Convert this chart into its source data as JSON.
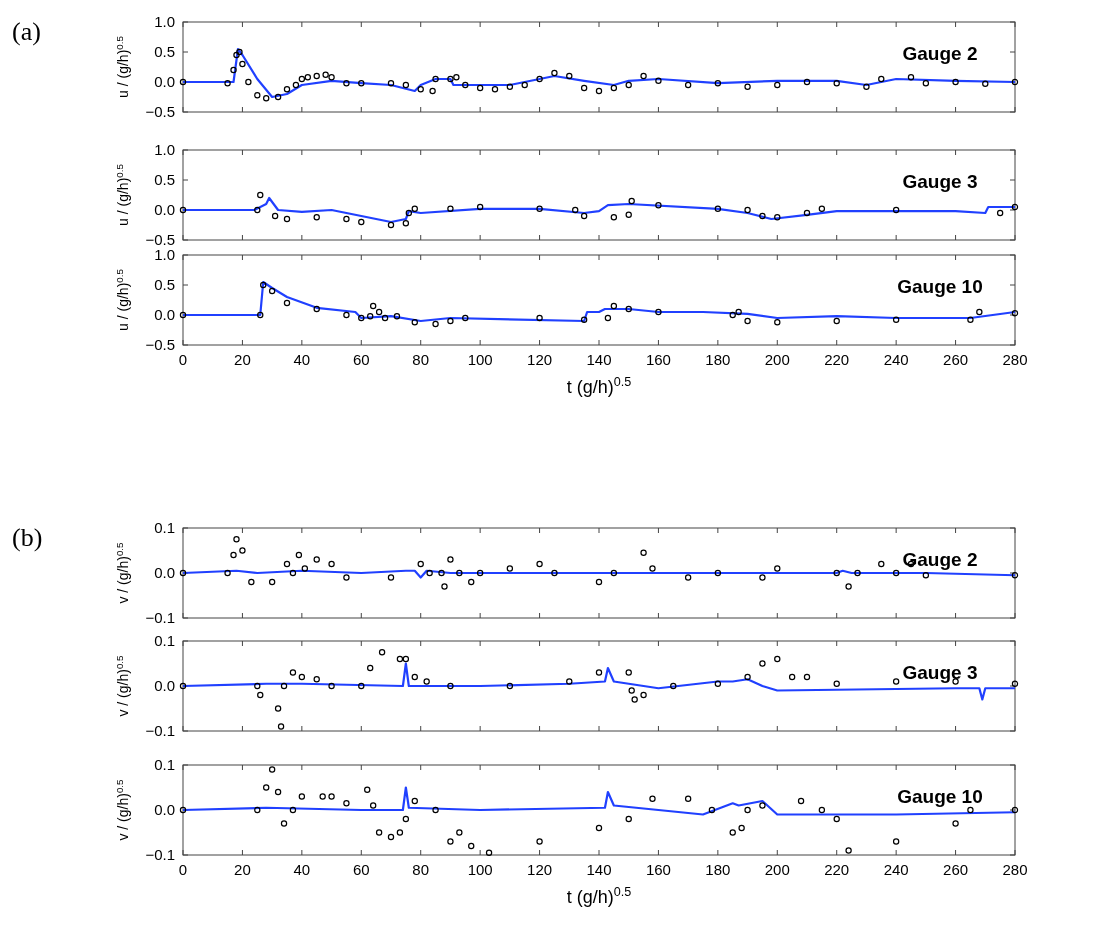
{
  "chart_data": [
    {
      "type": "line",
      "title": "Gauge 2",
      "ylabel": "u / (g/h)$^{0.5}$",
      "annotations": [
        "(a)"
      ],
      "tick_labels": "y",
      "xlim": [
        0,
        280
      ],
      "xticks": [
        0,
        20,
        40,
        60,
        80,
        100,
        120,
        140,
        160,
        180,
        200,
        220,
        240,
        260,
        280
      ],
      "ylim": [
        -0.5,
        1
      ],
      "yticks": [
        {
          "value": -0.5,
          "label": "−0.5"
        },
        {
          "value": 0,
          "label": "0.0"
        },
        {
          "value": 0.5,
          "label": "0.5"
        },
        {
          "value": 1,
          "label": "1.0"
        }
      ],
      "series": [
        {
          "type": "scatter",
          "marker": "circle",
          "color": "#000000",
          "x": [
            0,
            15,
            17,
            18,
            19,
            20,
            22,
            25,
            28,
            32,
            35,
            38,
            40,
            42,
            45,
            48,
            50,
            55,
            60,
            70,
            75,
            80,
            84,
            85,
            90,
            92,
            95,
            100,
            105,
            110,
            115,
            120,
            125,
            130,
            135,
            140,
            145,
            150,
            155,
            160,
            170,
            180,
            190,
            200,
            210,
            220,
            230,
            235,
            245,
            250,
            260,
            270,
            280
          ],
          "values": [
            0,
            -0.02,
            0.2,
            0.45,
            0.5,
            0.3,
            0,
            -0.22,
            -0.27,
            -0.25,
            -0.12,
            -0.05,
            0.05,
            0.08,
            0.1,
            0.12,
            0.08,
            -0.02,
            -0.02,
            -0.02,
            -0.05,
            -0.12,
            -0.15,
            0.05,
            0.05,
            0.08,
            -0.05,
            -0.1,
            -0.12,
            -0.08,
            -0.05,
            0.05,
            0.15,
            0.1,
            -0.1,
            -0.15,
            -0.1,
            -0.05,
            0.1,
            0.02,
            -0.05,
            -0.02,
            -0.08,
            -0.05,
            0,
            -0.02,
            -0.08,
            0.05,
            0.08,
            -0.02,
            0,
            -0.03,
            0
          ]
        },
        {
          "marker": "none",
          "color": "#2040ff",
          "x": [
            0,
            17,
            18.5,
            20,
            25,
            30,
            35,
            40,
            50,
            60,
            70,
            78,
            80,
            85,
            90,
            91,
            100,
            110,
            120,
            125,
            135,
            145,
            150,
            160,
            180,
            200,
            220,
            230,
            240,
            260,
            280
          ],
          "values": [
            0,
            0,
            0.55,
            0.45,
            0.05,
            -0.25,
            -0.2,
            -0.05,
            0.02,
            -0.02,
            -0.05,
            -0.15,
            -0.05,
            0.05,
            0.05,
            -0.05,
            -0.05,
            -0.05,
            0.05,
            0.1,
            0.02,
            -0.05,
            0.02,
            0.05,
            -0.02,
            0.02,
            0.02,
            -0.05,
            0.05,
            0.02,
            0
          ]
        }
      ]
    },
    {
      "type": "line",
      "title": "Gauge 3",
      "ylabel": "u / (g/h)$^{0.5}$",
      "tick_labels": "y",
      "xlim": [
        0,
        280
      ],
      "xticks": [
        0,
        20,
        40,
        60,
        80,
        100,
        120,
        140,
        160,
        180,
        200,
        220,
        240,
        260,
        280
      ],
      "ylim": [
        -0.5,
        1
      ],
      "yticks": [
        {
          "value": -0.5,
          "label": "−0.5"
        },
        {
          "value": 0,
          "label": "0.0"
        },
        {
          "value": 0.5,
          "label": "0.5"
        },
        {
          "value": 1,
          "label": "1.0"
        }
      ],
      "series": [
        {
          "type": "scatter",
          "marker": "circle",
          "color": "#000000",
          "x": [
            0,
            25,
            26,
            31,
            35,
            45,
            55,
            60,
            70,
            75,
            76,
            78,
            90,
            100,
            120,
            132,
            135,
            145,
            150,
            151,
            160,
            180,
            190,
            195,
            200,
            210,
            215,
            240,
            275,
            280
          ],
          "values": [
            0,
            0,
            0.25,
            -0.1,
            -0.15,
            -0.12,
            -0.15,
            -0.2,
            -0.25,
            -0.22,
            -0.05,
            0.02,
            0.02,
            0.05,
            0.02,
            0,
            -0.1,
            -0.12,
            -0.08,
            0.15,
            0.08,
            0.02,
            0,
            -0.1,
            -0.12,
            -0.05,
            0.02,
            0,
            -0.05,
            0.05
          ]
        },
        {
          "marker": "none",
          "color": "#2040ff",
          "x": [
            0,
            24,
            28,
            29,
            32,
            40,
            50,
            55,
            70,
            75,
            76,
            80,
            100,
            120,
            135,
            140,
            143,
            150,
            180,
            190,
            198,
            210,
            220,
            260,
            270,
            271,
            280
          ],
          "values": [
            0,
            0,
            0.1,
            0.2,
            0,
            -0.03,
            0,
            -0.05,
            -0.2,
            -0.15,
            -0.02,
            -0.05,
            0.02,
            0.02,
            -0.05,
            -0.02,
            0.08,
            0.1,
            0.02,
            -0.05,
            -0.15,
            -0.08,
            -0.02,
            -0.02,
            -0.05,
            0.05,
            0.05
          ]
        }
      ]
    },
    {
      "type": "line",
      "title": "Gauge 10",
      "ylabel": "u / (g/h)$^{0.5}$",
      "xlabel": "t (g/h)$^{0.5}$",
      "xlim": [
        0,
        280
      ],
      "xticks": [
        0,
        20,
        40,
        60,
        80,
        100,
        120,
        140,
        160,
        180,
        200,
        220,
        240,
        260,
        280
      ],
      "ylim": [
        -0.5,
        1
      ],
      "yticks": [
        {
          "value": -0.5,
          "label": "−0.5"
        },
        {
          "value": 0,
          "label": "0.0"
        },
        {
          "value": 0.5,
          "label": "0.5"
        },
        {
          "value": 1,
          "label": "1.0"
        }
      ],
      "series": [
        {
          "type": "scatter",
          "marker": "circle",
          "color": "#000000",
          "x": [
            0,
            26,
            27,
            30,
            35,
            45,
            55,
            60,
            63,
            64,
            66,
            68,
            72,
            78,
            85,
            90,
            95,
            120,
            135,
            143,
            145,
            150,
            160,
            185,
            187,
            190,
            200,
            220,
            240,
            265,
            268,
            280
          ],
          "values": [
            0,
            0,
            0.5,
            0.4,
            0.2,
            0.1,
            0,
            -0.05,
            -0.02,
            0.15,
            0.05,
            -0.05,
            -0.02,
            -0.12,
            -0.15,
            -0.1,
            -0.05,
            -0.05,
            -0.08,
            -0.05,
            0.15,
            0.1,
            0.05,
            0,
            0.05,
            -0.1,
            -0.12,
            -0.1,
            -0.08,
            -0.08,
            0.05,
            0.03
          ]
        },
        {
          "marker": "none",
          "color": "#2040ff",
          "x": [
            0,
            26,
            27,
            30,
            35,
            45,
            58,
            60,
            70,
            80,
            90,
            135,
            136,
            140,
            142,
            150,
            160,
            175,
            190,
            200,
            220,
            240,
            265,
            280
          ],
          "values": [
            0,
            0,
            0.55,
            0.45,
            0.3,
            0.12,
            0.05,
            -0.05,
            -0.02,
            -0.1,
            -0.05,
            -0.1,
            0.05,
            0.05,
            0.1,
            0.1,
            0.05,
            0.05,
            0.02,
            -0.05,
            -0.02,
            -0.05,
            -0.05,
            0.05
          ]
        }
      ]
    },
    {
      "type": "line",
      "title": "Gauge 2",
      "ylabel": "v / (g/h)$^{0.5}$",
      "annotations": [
        "(b)"
      ],
      "tick_labels": "y",
      "xlim": [
        0,
        280
      ],
      "xticks": [
        0,
        20,
        40,
        60,
        80,
        100,
        120,
        140,
        160,
        180,
        200,
        220,
        240,
        260,
        280
      ],
      "ylim": [
        -0.1,
        0.1
      ],
      "yticks": [
        {
          "value": -0.1,
          "label": "−0.1"
        },
        {
          "value": 0,
          "label": "0.0"
        },
        {
          "value": 0.1,
          "label": "0.1"
        }
      ],
      "series": [
        {
          "type": "scatter",
          "marker": "circle",
          "color": "#000000",
          "x": [
            0,
            15,
            17,
            18,
            20,
            23,
            30,
            35,
            37,
            39,
            41,
            45,
            50,
            55,
            70,
            80,
            83,
            87,
            88,
            90,
            93,
            97,
            100,
            110,
            120,
            125,
            140,
            145,
            155,
            158,
            170,
            180,
            195,
            200,
            220,
            224,
            227,
            235,
            240,
            245,
            250,
            280
          ],
          "values": [
            0,
            0,
            0.04,
            0.075,
            0.05,
            -0.02,
            -0.02,
            0.02,
            0,
            0.04,
            0.01,
            0.03,
            0.02,
            -0.01,
            -0.01,
            0.02,
            0,
            0,
            -0.03,
            0.03,
            0,
            -0.02,
            0,
            0.01,
            0.02,
            0,
            -0.02,
            0,
            0.045,
            0.01,
            -0.01,
            0,
            -0.01,
            0.01,
            0,
            -0.03,
            0,
            0.02,
            0,
            0.02,
            -0.005,
            -0.005
          ]
        },
        {
          "marker": "none",
          "color": "#2040ff",
          "x": [
            0,
            18,
            25,
            40,
            60,
            75,
            78,
            80,
            82,
            90,
            120,
            160,
            220,
            222,
            225,
            250,
            280
          ],
          "values": [
            0,
            0.005,
            0,
            0.005,
            0,
            0.005,
            0.005,
            -0.01,
            0.005,
            0,
            0,
            0,
            0,
            0.005,
            0,
            0,
            -0.005
          ]
        }
      ]
    },
    {
      "type": "line",
      "title": "Gauge 3",
      "ylabel": "v / (g/h)$^{0.5}$",
      "tick_labels": "y",
      "xlim": [
        0,
        280
      ],
      "xticks": [
        0,
        20,
        40,
        60,
        80,
        100,
        120,
        140,
        160,
        180,
        200,
        220,
        240,
        260,
        280
      ],
      "ylim": [
        -0.1,
        0.1
      ],
      "yticks": [
        {
          "value": -0.1,
          "label": "−0.1"
        },
        {
          "value": 0,
          "label": "0.0"
        },
        {
          "value": 0.1,
          "label": "0.1"
        }
      ],
      "series": [
        {
          "type": "scatter",
          "marker": "circle",
          "color": "#000000",
          "x": [
            0,
            25,
            26,
            32,
            33,
            34,
            37,
            40,
            45,
            50,
            60,
            63,
            67,
            73,
            75,
            78,
            82,
            90,
            110,
            130,
            140,
            150,
            151,
            152,
            155,
            165,
            180,
            190,
            195,
            200,
            205,
            210,
            220,
            240,
            260,
            280
          ],
          "values": [
            0,
            0,
            -0.02,
            -0.05,
            -0.09,
            0,
            0.03,
            0.02,
            0.015,
            0,
            0,
            0.04,
            0.075,
            0.06,
            0.06,
            0.02,
            0.01,
            0,
            0,
            0.01,
            0.03,
            0.03,
            -0.01,
            -0.03,
            -0.02,
            0,
            0.005,
            0.02,
            0.05,
            0.06,
            0.02,
            0.02,
            0.005,
            0.01,
            0.01,
            0.005
          ]
        },
        {
          "marker": "none",
          "color": "#2040ff",
          "x": [
            0,
            28,
            40,
            74,
            75,
            76,
            100,
            130,
            142,
            143,
            145,
            160,
            180,
            185,
            190,
            195,
            200,
            260,
            268,
            269,
            270,
            280
          ],
          "values": [
            0,
            0.005,
            0.005,
            0,
            0.05,
            0,
            0,
            0.005,
            0.01,
            0.04,
            0.01,
            -0.005,
            0.01,
            0.01,
            0.015,
            0,
            -0.01,
            -0.005,
            -0.005,
            -0.03,
            -0.005,
            -0.005
          ]
        }
      ]
    },
    {
      "type": "line",
      "title": "Gauge 10",
      "ylabel": "v / (g/h)$^{0.5}$",
      "xlabel": "t (g/h)$^{0.5}$",
      "xlim": [
        0,
        280
      ],
      "xticks": [
        0,
        20,
        40,
        60,
        80,
        100,
        120,
        140,
        160,
        180,
        200,
        220,
        240,
        260,
        280
      ],
      "ylim": [
        -0.1,
        0.1
      ],
      "yticks": [
        {
          "value": -0.1,
          "label": "−0.1"
        },
        {
          "value": 0,
          "label": "0.0"
        },
        {
          "value": 0.1,
          "label": "0.1"
        }
      ],
      "series": [
        {
          "type": "scatter",
          "marker": "circle",
          "color": "#000000",
          "x": [
            0,
            25,
            28,
            30,
            32,
            34,
            37,
            40,
            47,
            50,
            55,
            62,
            64,
            66,
            70,
            73,
            75,
            78,
            85,
            90,
            93,
            97,
            103,
            120,
            140,
            150,
            158,
            170,
            178,
            185,
            188,
            190,
            195,
            208,
            215,
            220,
            224,
            240,
            260,
            265,
            280
          ],
          "values": [
            0,
            0,
            0.05,
            0.09,
            0.04,
            -0.03,
            0,
            0.03,
            0.03,
            0.03,
            0.015,
            0.045,
            0.01,
            -0.05,
            -0.06,
            -0.05,
            -0.02,
            0.02,
            0,
            -0.07,
            -0.05,
            -0.08,
            -0.095,
            -0.07,
            -0.04,
            -0.02,
            0.025,
            0.025,
            0,
            -0.05,
            -0.04,
            0,
            0.01,
            0.02,
            0,
            -0.02,
            -0.09,
            -0.07,
            -0.03,
            0,
            0
          ]
        },
        {
          "marker": "none",
          "color": "#2040ff",
          "x": [
            0,
            28,
            60,
            74,
            75,
            76,
            100,
            142,
            143,
            145,
            160,
            175,
            185,
            187,
            195,
            200,
            240,
            280
          ],
          "values": [
            0,
            0.005,
            0,
            0,
            0.05,
            0.005,
            0,
            0.005,
            0.04,
            0.01,
            0,
            -0.01,
            0.015,
            0.01,
            0.02,
            -0.01,
            -0.01,
            -0.005
          ]
        }
      ]
    }
  ]
}
